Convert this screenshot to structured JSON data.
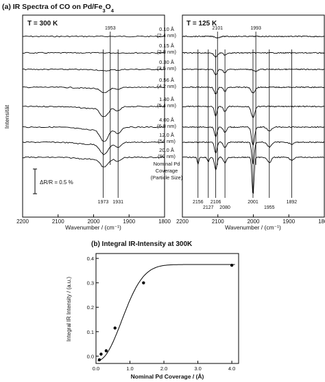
{
  "figure": {
    "panel_a_title": "(a) IR Spectra of CO on Pd/Fe",
    "panel_a_sub1": "3",
    "panel_a_mid": "O",
    "panel_a_sub2": "4",
    "panel_b_title": "(b) Integral IR-Intensity at 300K"
  },
  "chart_data": [
    {
      "type": "line",
      "panel": "a-left",
      "title": "T = 300 K",
      "xlabel": "Wavenumber / (cm⁻¹)",
      "ylabel": "Intensität",
      "xlim": [
        2200,
        1800
      ],
      "x_reversed": true,
      "x_ticks": [
        2200,
        2100,
        2000,
        1900,
        1800
      ],
      "scale_bar_label": "ΔR/R = 0.5 %",
      "marker_lines": [
        {
          "position": 1973,
          "label": "1973",
          "label_pos": "bottom"
        },
        {
          "position": 1931,
          "label": "1931",
          "label_pos": "bottom"
        },
        {
          "position": 1953,
          "label": "1953",
          "label_pos": "top"
        }
      ],
      "series": [
        {
          "name": "0.10 Å (2.4 nm)",
          "depth": 0.0
        },
        {
          "name": "0.15 Å (2.8 nm)",
          "depth": 0.0
        },
        {
          "name": "0.30 Å (3.5 nm)",
          "depth": 0.1
        },
        {
          "name": "0.56 Å (4.2 nm)",
          "depth": 0.35
        },
        {
          "name": "1.40 Å (5.4 nm)",
          "depth": 0.65
        },
        {
          "name": "4.00 Å (6.8 nm)",
          "depth": 0.9
        },
        {
          "name": "12.0 Å (54 nm)",
          "depth": 0.75
        },
        {
          "name": "20.0 Å (90 nm)",
          "depth": 0.6
        }
      ]
    },
    {
      "type": "line",
      "panel": "a-right",
      "title": "T = 125 K",
      "xlabel": "Wavenumber / (cm⁻¹)",
      "xlim": [
        2200,
        1800
      ],
      "x_reversed": true,
      "x_ticks": [
        2200,
        2100,
        2000,
        1900,
        1800
      ],
      "legend_note_lines": [
        "Nominal Pd",
        "Coverage",
        "(Particle Size)"
      ],
      "marker_lines": [
        {
          "position": 2101,
          "label": "2101",
          "label_pos": "top"
        },
        {
          "position": 1993,
          "label": "1993",
          "label_pos": "top"
        },
        {
          "position": 2156,
          "label": "2156",
          "label_pos": "bottom"
        },
        {
          "position": 2127,
          "label": "2127",
          "label_pos": "bottom"
        },
        {
          "position": 2106,
          "label": "2106",
          "label_pos": "bottom"
        },
        {
          "position": 2080,
          "label": "2080",
          "label_pos": "bottom"
        },
        {
          "position": 2001,
          "label": "2001",
          "label_pos": "bottom"
        },
        {
          "position": 1955,
          "label": "1955",
          "label_pos": "bottom"
        },
        {
          "position": 1892,
          "label": "1892",
          "label_pos": "bottom"
        }
      ]
    },
    {
      "type": "scatter",
      "panel": "b",
      "title": "(b) Integral IR-Intensity at 300K",
      "xlabel": "Nominal Pd Coverage / (Å)",
      "ylabel": "Integral IR Intensity / (a.u.)",
      "xlim": [
        0.0,
        4.2
      ],
      "ylim": [
        -0.03,
        0.42
      ],
      "x_ticks": [
        "0.0",
        "1.0",
        "2.0",
        "3.0",
        "4.0"
      ],
      "y_ticks": [
        "0.0",
        "0.1",
        "0.2",
        "0.3",
        "0.4"
      ],
      "points": {
        "x": [
          0.1,
          0.15,
          0.3,
          0.56,
          1.4,
          4.0
        ],
        "y": [
          -0.015,
          0.008,
          0.022,
          0.115,
          0.3,
          0.372
        ]
      },
      "fit_curve": true
    }
  ]
}
